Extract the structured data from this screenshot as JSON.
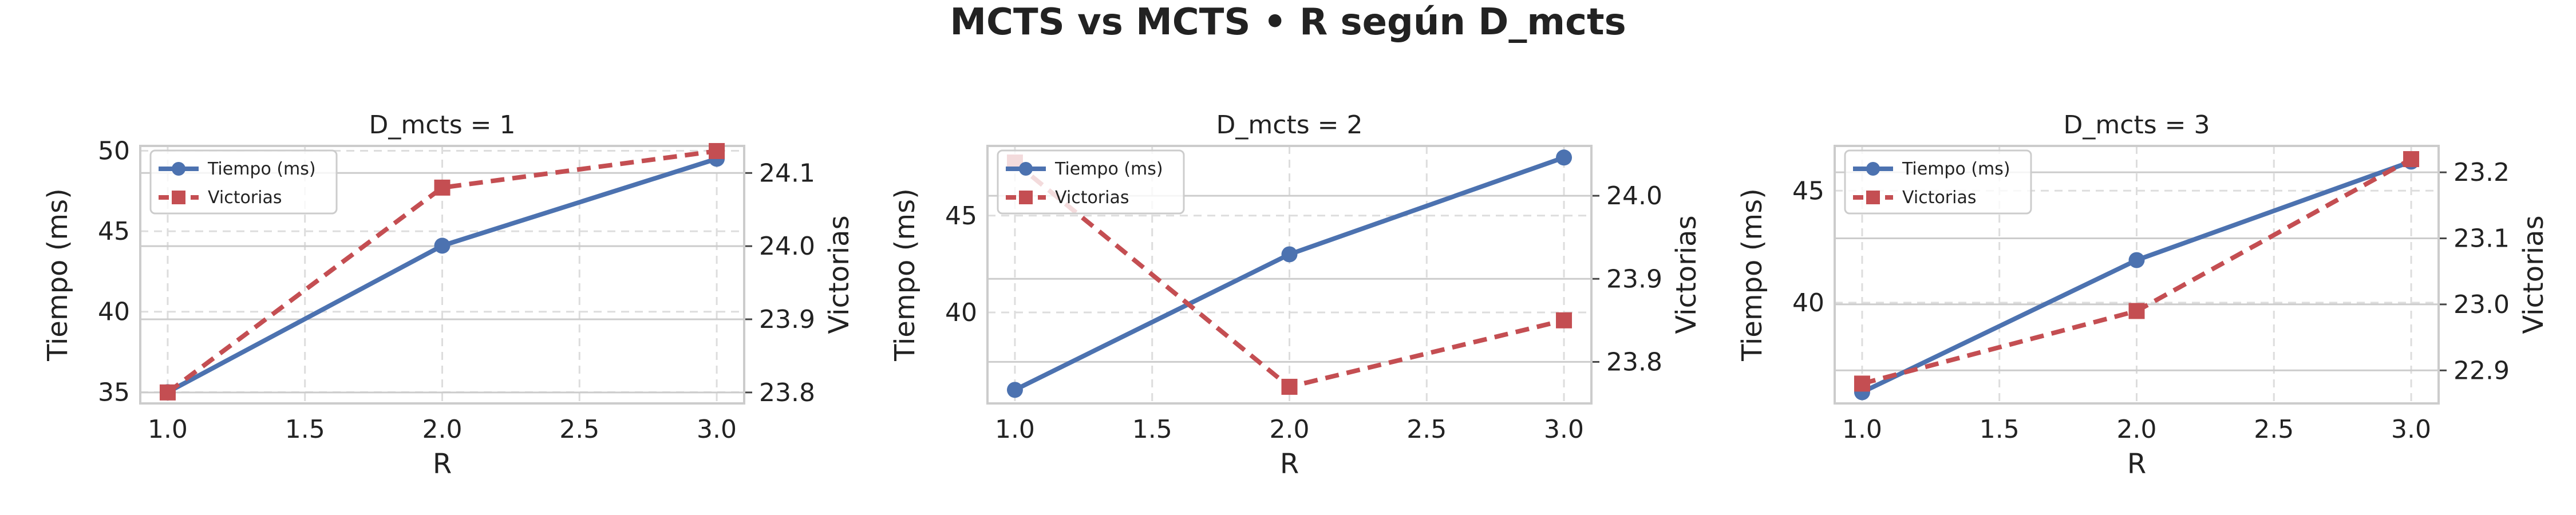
{
  "figure": {
    "title": "MCTS vs MCTS • R según D_mcts"
  },
  "colors": {
    "tiempo": "#4c72b0",
    "victorias": "#c44e52",
    "grid": "#dddddd",
    "frame": "#cccccc"
  },
  "chart_data": [
    {
      "type": "line",
      "title": "D_mcts = 1",
      "xlabel": "R",
      "ylabel": "Tiempo (ms)",
      "ylabel_right": "Victorias",
      "x": [
        1.0,
        2.0,
        3.0
      ],
      "xlim": [
        0.9,
        3.1
      ],
      "xticks": [
        "1.0",
        "1.5",
        "2.0",
        "2.5",
        "3.0"
      ],
      "ylim_left": [
        34.3,
        50.3
      ],
      "yticks_left": [
        "35",
        "40",
        "45",
        "50"
      ],
      "ylim_right": [
        23.785,
        24.137
      ],
      "yticks_right": [
        "23.8",
        "23.9",
        "24.0",
        "24.1"
      ],
      "legend_position": "upper-left",
      "series": [
        {
          "name": "Tiempo (ms)",
          "axis": "left",
          "marker": "circle",
          "style": "solid",
          "values": [
            35.0,
            44.1,
            49.5
          ]
        },
        {
          "name": "Victorias",
          "axis": "right",
          "marker": "square",
          "style": "dashed",
          "values": [
            23.8,
            24.08,
            24.13
          ]
        }
      ]
    },
    {
      "type": "line",
      "title": "D_mcts = 2",
      "xlabel": "R",
      "ylabel": "Tiempo (ms)",
      "ylabel_right": "Victorias",
      "x": [
        1.0,
        2.0,
        3.0
      ],
      "xlim": [
        0.9,
        3.1
      ],
      "xticks": [
        "1.0",
        "1.5",
        "2.0",
        "2.5",
        "3.0"
      ],
      "ylim_left": [
        35.3,
        48.6
      ],
      "yticks_left": [
        "40",
        "45"
      ],
      "ylim_right": [
        23.75,
        24.06
      ],
      "yticks_right": [
        "23.8",
        "23.9",
        "24.0"
      ],
      "legend_position": "upper-left",
      "series": [
        {
          "name": "Tiempo (ms)",
          "axis": "left",
          "marker": "circle",
          "style": "solid",
          "values": [
            36.0,
            43.0,
            48.0
          ]
        },
        {
          "name": "Victorias",
          "axis": "right",
          "marker": "square",
          "style": "dashed",
          "values": [
            24.04,
            23.77,
            23.85
          ]
        }
      ]
    },
    {
      "type": "line",
      "title": "D_mcts = 3",
      "xlabel": "R",
      "ylabel": "Tiempo (ms)",
      "ylabel_right": "Victorias",
      "x": [
        1.0,
        2.0,
        3.0
      ],
      "xlim": [
        0.9,
        3.1
      ],
      "xticks": [
        "1.0",
        "1.5",
        "2.0",
        "2.5",
        "3.0"
      ],
      "ylim_left": [
        35.5,
        47.0
      ],
      "yticks_left": [
        "40",
        "45"
      ],
      "ylim_right": [
        22.85,
        23.24
      ],
      "yticks_right": [
        "22.9",
        "23.0",
        "23.1",
        "23.2"
      ],
      "legend_position": "upper-left",
      "series": [
        {
          "name": "Tiempo (ms)",
          "axis": "left",
          "marker": "circle",
          "style": "solid",
          "values": [
            36.0,
            41.9,
            46.3
          ]
        },
        {
          "name": "Victorias",
          "axis": "right",
          "marker": "square",
          "style": "dashed",
          "values": [
            22.88,
            22.99,
            23.22
          ]
        }
      ]
    }
  ]
}
